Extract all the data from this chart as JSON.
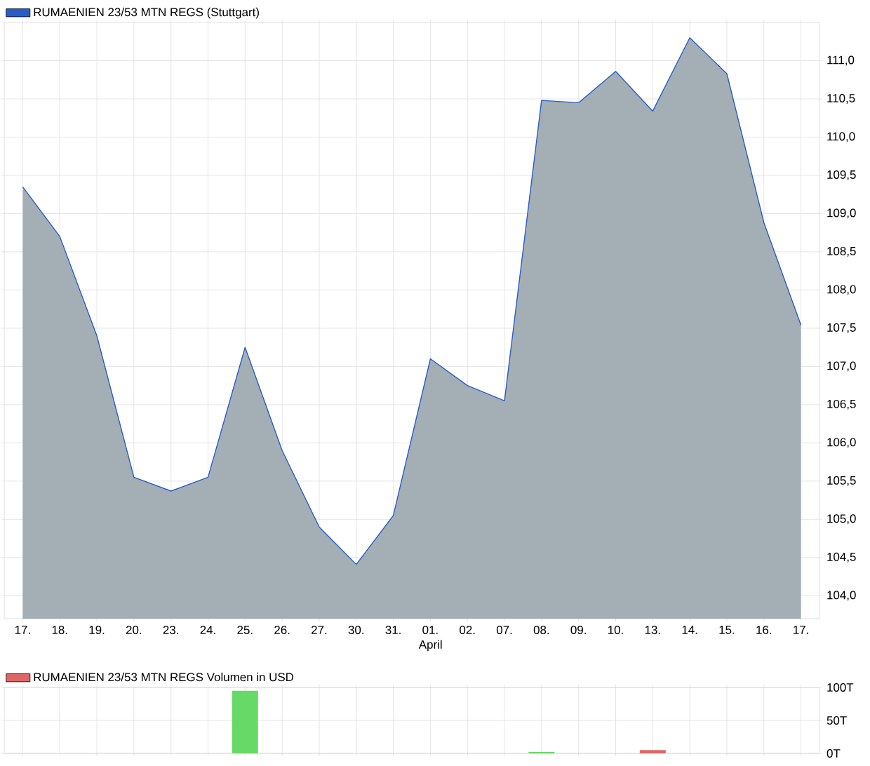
{
  "chart_data": [
    {
      "type": "area",
      "categories": [
        "17.",
        "18.",
        "19.",
        "20.",
        "23.",
        "24.",
        "25.",
        "26.",
        "27.",
        "30.",
        "31.",
        "01.",
        "02.",
        "07.",
        "08.",
        "09.",
        "10.",
        "13.",
        "14.",
        "15.",
        "16.",
        "17."
      ],
      "series": [
        {
          "name": "RUMAENIEN 23/53 MTN REGS (Stuttgart)",
          "color": "#2a5cc8",
          "values": [
            109.35,
            108.7,
            107.4,
            105.55,
            105.37,
            105.55,
            107.25,
            105.9,
            104.9,
            104.41,
            105.05,
            107.1,
            106.75,
            106.55,
            110.48,
            110.45,
            110.86,
            110.34,
            111.3,
            110.83,
            108.88,
            107.54
          ]
        }
      ],
      "ylim": [
        103.7,
        111.5
      ],
      "yticks": [
        {
          "value": 104,
          "label": "104,0"
        },
        {
          "value": 104.5,
          "label": "104,5"
        },
        {
          "value": 105,
          "label": "105,0"
        },
        {
          "value": 105.5,
          "label": "105,5"
        },
        {
          "value": 106,
          "label": "106,0"
        },
        {
          "value": 106.5,
          "label": "106,5"
        },
        {
          "value": 107,
          "label": "107,0"
        },
        {
          "value": 107.5,
          "label": "107,5"
        },
        {
          "value": 108,
          "label": "108,0"
        },
        {
          "value": 108.5,
          "label": "108,5"
        },
        {
          "value": 109,
          "label": "109,0"
        },
        {
          "value": 109.5,
          "label": "109,5"
        },
        {
          "value": 110,
          "label": "110,0"
        },
        {
          "value": 110.5,
          "label": "110,5"
        },
        {
          "value": 111,
          "label": "111,0"
        }
      ],
      "grid": true,
      "legend": "top left",
      "annotations": [
        "April"
      ]
    },
    {
      "type": "bar",
      "categories": [
        "17.",
        "18.",
        "19.",
        "20.",
        "23.",
        "24.",
        "25.",
        "26.",
        "27.",
        "30.",
        "31.",
        "01.",
        "02.",
        "07.",
        "08.",
        "09.",
        "10.",
        "13.",
        "14.",
        "15.",
        "16.",
        "17."
      ],
      "series": [
        {
          "name": "RUMAENIEN 23/53 MTN REGS Volumen in USD",
          "color": "#e06666",
          "colors": [
            null,
            null,
            null,
            null,
            null,
            null,
            "#66d966",
            null,
            null,
            null,
            null,
            null,
            null,
            null,
            "#66d966",
            null,
            null,
            "#e06666",
            null,
            null,
            null,
            null
          ],
          "values": [
            null,
            null,
            null,
            null,
            null,
            null,
            95,
            null,
            null,
            null,
            null,
            null,
            null,
            null,
            2,
            null,
            null,
            5,
            null,
            null,
            null,
            null
          ]
        }
      ],
      "ylim": [
        0,
        100
      ],
      "yticks": [
        {
          "value": 0,
          "label": "0T"
        },
        {
          "value": 50,
          "label": "50T"
        },
        {
          "value": 100,
          "label": "100T"
        }
      ],
      "grid": true,
      "legend": "top left",
      "tick_labels": "y"
    }
  ]
}
